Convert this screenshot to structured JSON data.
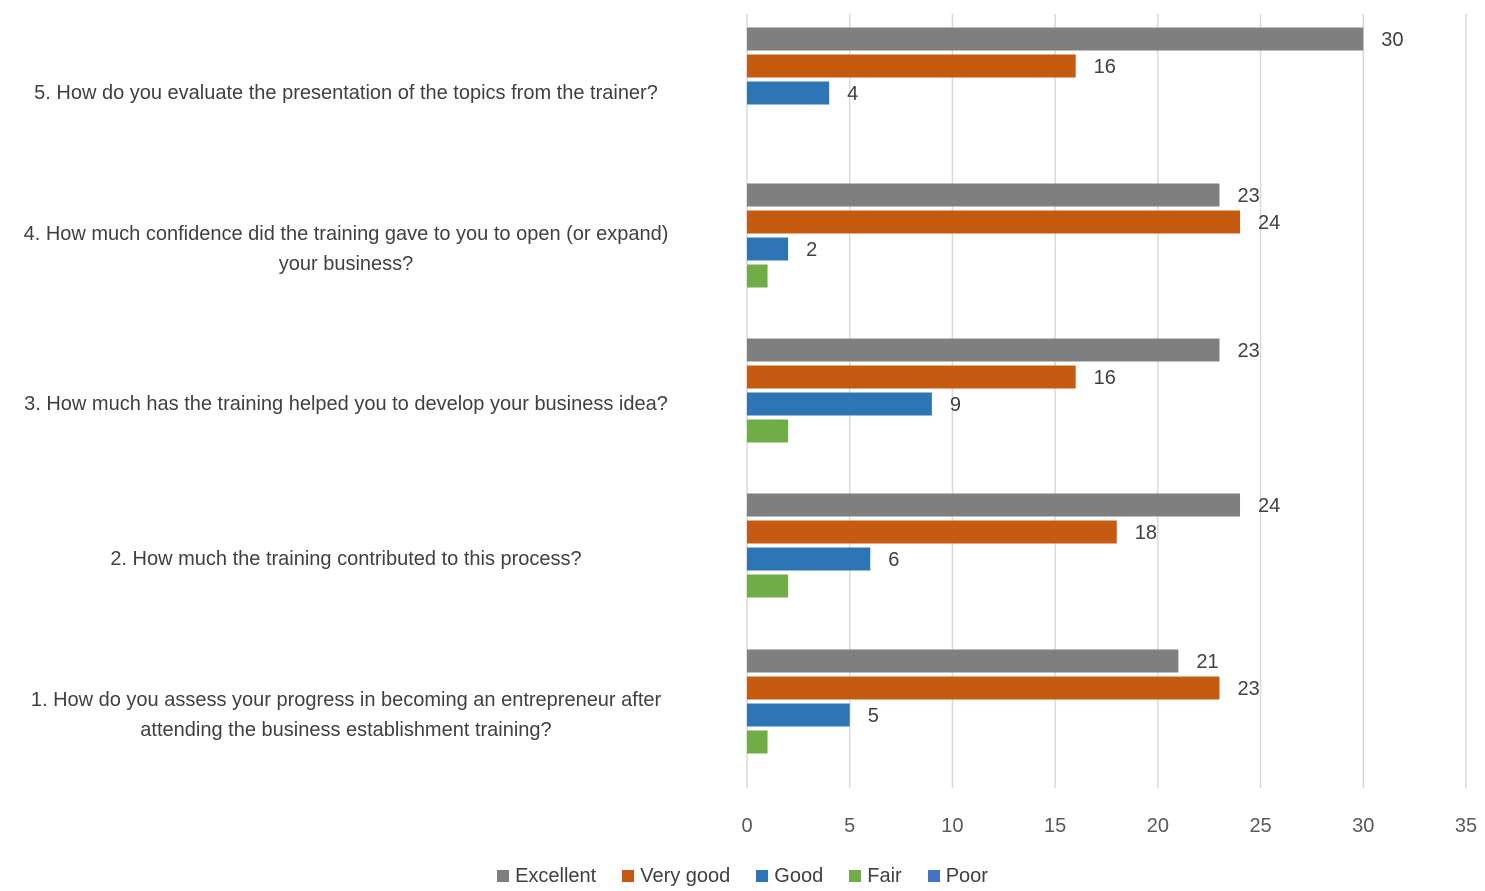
{
  "chart_data": {
    "type": "bar",
    "orientation": "horizontal",
    "categories": [
      "5. How do you evaluate the presentation of the topics from the trainer?",
      "4. How much confidence did the training gave to you to open (or expand) your business?",
      "3. How much has the training helped you to develop your business idea?",
      "2. How much the training contributed to this process?",
      "1. How do you assess your progress in becoming an entrepreneur after attending the business establishment training?"
    ],
    "category_lines": [
      [
        "5. How do you evaluate the presentation of the topics from the trainer?"
      ],
      [
        "4. How much confidence did the training gave to you to open (or expand)",
        "your business?"
      ],
      [
        "3. How much has the training helped you to develop your business idea?"
      ],
      [
        "2. How much the training contributed to this process?"
      ],
      [
        "1. How do you assess your progress in becoming an entrepreneur after",
        "attending the business establishment training?"
      ]
    ],
    "series": [
      {
        "name": "Excellent",
        "color": "#7f7f7f",
        "values": [
          30,
          23,
          23,
          24,
          21
        ],
        "labels": [
          "30",
          "23",
          "23",
          "24",
          "21"
        ]
      },
      {
        "name": "Very good",
        "color": "#c55a11",
        "values": [
          16,
          24,
          16,
          18,
          23
        ],
        "labels": [
          "16",
          "24",
          "16",
          "18",
          "23"
        ]
      },
      {
        "name": "Good",
        "color": "#2e75b6",
        "values": [
          4,
          2,
          9,
          6,
          5
        ],
        "labels": [
          "4",
          "2",
          "9",
          "6",
          "5"
        ]
      },
      {
        "name": "Fair",
        "color": "#70ad47",
        "values": [
          0,
          1,
          2,
          2,
          1
        ],
        "labels": [
          "",
          "",
          "",
          "",
          ""
        ]
      },
      {
        "name": "Poor",
        "color": "#4472c4",
        "values": [
          0,
          0,
          0,
          0,
          0
        ],
        "labels": [
          "",
          "",
          "",
          "",
          ""
        ]
      }
    ],
    "xlim": [
      0,
      35
    ],
    "xticks": [
      "0",
      "5",
      "10",
      "15",
      "20",
      "25",
      "30",
      "35"
    ],
    "xlabel": "",
    "ylabel": "",
    "title": "",
    "grid": "vertical",
    "legend_position": "bottom"
  }
}
